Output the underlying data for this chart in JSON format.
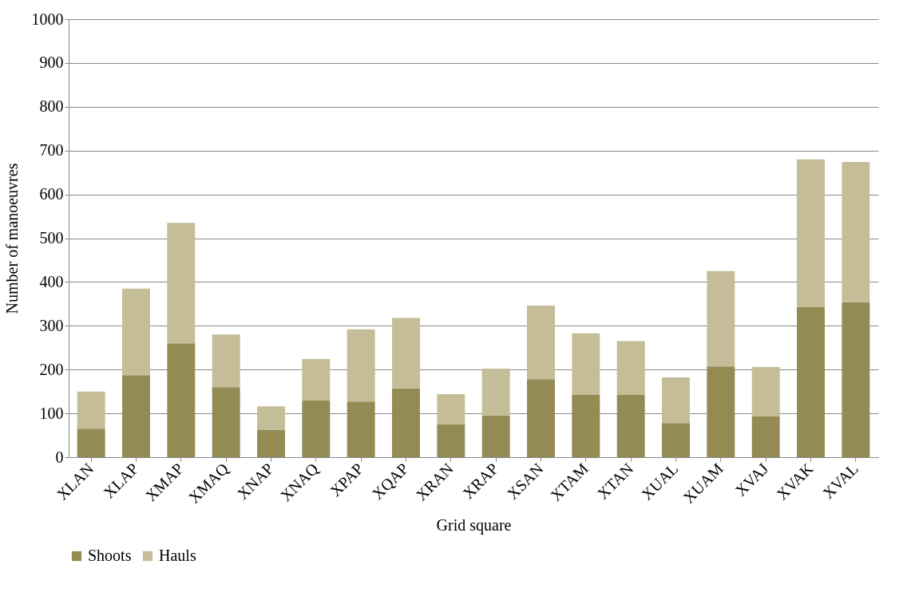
{
  "chart_data": {
    "type": "bar",
    "stacked": true,
    "xlabel": "Grid square",
    "ylabel": "Number of manoeuvres",
    "categories": [
      "XLAN",
      "XLAP",
      "XMAP",
      "XMAQ",
      "XNAP",
      "XNAQ",
      "XPAP",
      "XQAP",
      "XRAN",
      "XRAP",
      "XSAN",
      "XTAM",
      "XTAN",
      "XUAL",
      "XUAM",
      "XVAJ",
      "XVAK",
      "XVAL"
    ],
    "series": [
      {
        "name": "Shoots",
        "color": "#948a54",
        "values": [
          65,
          187,
          260,
          160,
          63,
          130,
          127,
          157,
          75,
          95,
          178,
          142,
          142,
          78,
          207,
          93,
          343,
          354
        ]
      },
      {
        "name": "Hauls",
        "color": "#c4bd97",
        "values": [
          85,
          198,
          275,
          120,
          53,
          94,
          165,
          161,
          69,
          107,
          168,
          141,
          123,
          104,
          218,
          113,
          337,
          320
        ]
      }
    ],
    "ylim": [
      0,
      1000
    ],
    "yticks": [
      0,
      100,
      200,
      300,
      400,
      500,
      600,
      700,
      800,
      900,
      1000
    ],
    "grid": "y",
    "legend": "bottom"
  }
}
